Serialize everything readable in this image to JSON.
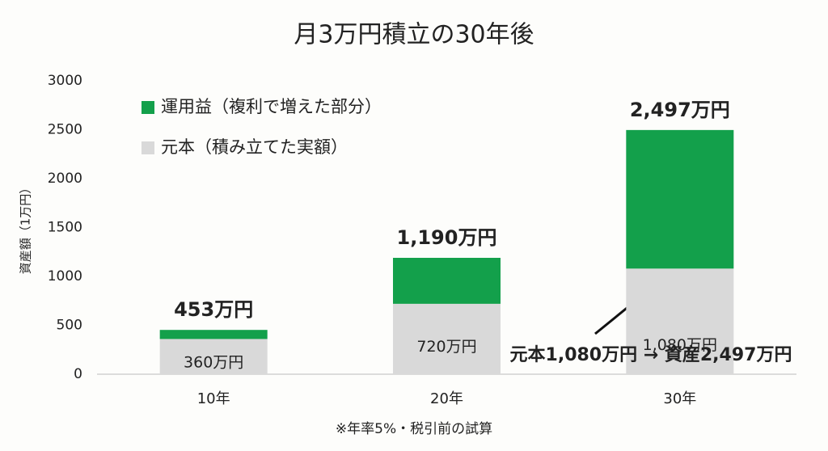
{
  "chart_data": {
    "type": "stacked-bar",
    "title": "月3万円積立の30年後",
    "y_label": "資産額（1万円）",
    "footnote": "※年率5%・税引前の試算",
    "annotation": "元本1,080万円 → 資産2,497万円",
    "categories": [
      "10年",
      "20年",
      "30年"
    ],
    "series": [
      {
        "name": "元本（積み立てた実額）",
        "color": "#d9d9d9",
        "values": [
          360,
          720,
          1080
        ],
        "value_labels": [
          "360万円",
          "720万円",
          "1,080万円"
        ]
      },
      {
        "name": "運用益（複利で増えた部分）",
        "color": "#13a04b",
        "values": [
          93,
          470,
          1417
        ]
      }
    ],
    "totals": [
      453,
      1190,
      2497
    ],
    "total_labels": [
      "453万円",
      "1,190万円",
      "2,497万円"
    ],
    "ylim": [
      0,
      3000
    ],
    "yticks": [
      0,
      500,
      1000,
      1500,
      2000,
      2500,
      3000
    ],
    "grid": false
  }
}
